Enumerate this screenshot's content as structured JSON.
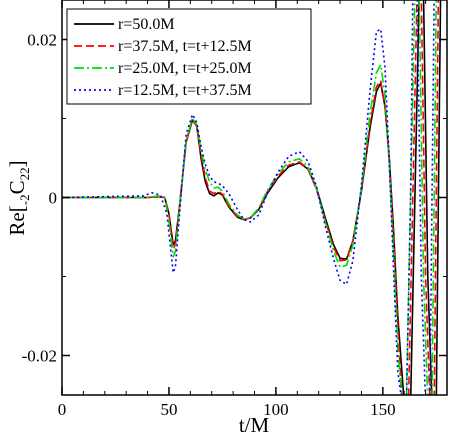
{
  "chart_data": {
    "type": "line",
    "title": "",
    "xlabel": "t/M",
    "ylabel": "Re[-2C22]",
    "ylabel_parts": {
      "base": "Re[",
      "pre_sub": "-2",
      "main": "C",
      "sub": "22",
      "close": "]"
    },
    "xlim": [
      0,
      180
    ],
    "ylim": [
      -0.025,
      0.025
    ],
    "x_ticks": [
      0,
      50,
      100,
      150
    ],
    "x_tick_labels": [
      "0",
      "50",
      "100",
      "150"
    ],
    "y_ticks": [
      -0.02,
      0,
      0.02
    ],
    "y_tick_labels": [
      "-0.02",
      "0",
      "0.02"
    ],
    "grid": false,
    "legend_position": "top-left",
    "series": [
      {
        "name": "r=50.0M",
        "color": "#000000",
        "dash": "solid",
        "points": [
          [
            0,
            0
          ],
          [
            40,
            0
          ],
          [
            45,
            0.0001
          ],
          [
            48,
            0
          ],
          [
            50,
            -0.002
          ],
          [
            52,
            -0.006
          ],
          [
            53,
            -0.0055
          ],
          [
            55,
            -0.001
          ],
          [
            58,
            0.007
          ],
          [
            61,
            0.0098
          ],
          [
            63,
            0.009
          ],
          [
            65,
            0.005
          ],
          [
            67,
            0.002
          ],
          [
            69,
            0.0005
          ],
          [
            71,
            0.0002
          ],
          [
            73,
            0.0006
          ],
          [
            75,
            0.0003
          ],
          [
            78,
            -0.0012
          ],
          [
            82,
            -0.0025
          ],
          [
            85,
            -0.0028
          ],
          [
            88,
            -0.0026
          ],
          [
            92,
            -0.0015
          ],
          [
            96,
            0.0005
          ],
          [
            101,
            0.0025
          ],
          [
            106,
            0.0039
          ],
          [
            111,
            0.0044
          ],
          [
            115,
            0.0036
          ],
          [
            119,
            0.0012
          ],
          [
            123,
            -0.0025
          ],
          [
            127,
            -0.006
          ],
          [
            130,
            -0.0077
          ],
          [
            133,
            -0.0078
          ],
          [
            136,
            -0.0055
          ],
          [
            140,
            0.0008
          ],
          [
            144,
            0.0088
          ],
          [
            147,
            0.0134
          ],
          [
            149,
            0.0145
          ],
          [
            151,
            0.0115
          ],
          [
            153,
            0.005
          ],
          [
            155,
            -0.004
          ],
          [
            157,
            -0.015
          ],
          [
            160,
            -0.026
          ],
          [
            163,
            -0.026
          ],
          [
            165,
            0
          ],
          [
            167,
            0.026
          ],
          [
            169,
            0.026
          ],
          [
            171,
            -0.01
          ],
          [
            173,
            -0.026
          ],
          [
            175,
            -0.026
          ],
          [
            176,
            0
          ],
          [
            177,
            0.026
          ],
          [
            179,
            0.026
          ]
        ]
      },
      {
        "name": "r=37.5M, t=t+12.5M",
        "color": "#ff0000",
        "dash": "8,4",
        "points": [
          [
            0,
            0
          ],
          [
            40,
            0
          ],
          [
            45,
            0.0001
          ],
          [
            48,
            0
          ],
          [
            50,
            -0.002
          ],
          [
            52,
            -0.0065
          ],
          [
            53,
            -0.006
          ],
          [
            55,
            -0.001
          ],
          [
            58,
            0.007
          ],
          [
            61,
            0.0099
          ],
          [
            63,
            0.009
          ],
          [
            65,
            0.0055
          ],
          [
            67,
            0.0025
          ],
          [
            69,
            0.0008
          ],
          [
            71,
            0.0005
          ],
          [
            73,
            0.0008
          ],
          [
            75,
            0.0004
          ],
          [
            78,
            -0.0011
          ],
          [
            82,
            -0.0024
          ],
          [
            85,
            -0.0028
          ],
          [
            88,
            -0.0026
          ],
          [
            92,
            -0.0014
          ],
          [
            96,
            0.0007
          ],
          [
            101,
            0.0027
          ],
          [
            106,
            0.0041
          ],
          [
            111,
            0.0045
          ],
          [
            115,
            0.0036
          ],
          [
            119,
            0.001
          ],
          [
            123,
            -0.0028
          ],
          [
            127,
            -0.0063
          ],
          [
            130,
            -0.008
          ],
          [
            133,
            -0.0079
          ],
          [
            136,
            -0.0055
          ],
          [
            140,
            0.001
          ],
          [
            144,
            0.0093
          ],
          [
            147,
            0.014
          ],
          [
            149,
            0.0148
          ],
          [
            151,
            0.0115
          ],
          [
            153,
            0.0045
          ],
          [
            155,
            -0.005
          ],
          [
            157,
            -0.016
          ],
          [
            159,
            -0.026
          ],
          [
            162,
            -0.026
          ],
          [
            164,
            0
          ],
          [
            166,
            0.026
          ],
          [
            168,
            0.026
          ],
          [
            170,
            -0.01
          ],
          [
            172,
            -0.026
          ],
          [
            174,
            -0.026
          ],
          [
            175,
            0
          ],
          [
            176,
            0.026
          ],
          [
            178,
            0.026
          ]
        ]
      },
      {
        "name": "r=25.0M, t=t+25.0M",
        "color": "#00dd00",
        "dash": "10,3,2,3",
        "points": [
          [
            0,
            0
          ],
          [
            40,
            0
          ],
          [
            45,
            0.0002
          ],
          [
            48,
            0
          ],
          [
            50,
            -0.003
          ],
          [
            52,
            -0.0075
          ],
          [
            53,
            -0.0068
          ],
          [
            55,
            -0.0012
          ],
          [
            58,
            0.0072
          ],
          [
            61,
            0.0101
          ],
          [
            63,
            0.0092
          ],
          [
            65,
            0.006
          ],
          [
            67,
            0.0035
          ],
          [
            69,
            0.002
          ],
          [
            71,
            0.0012
          ],
          [
            73,
            0.0013
          ],
          [
            75,
            0.0008
          ],
          [
            78,
            -0.0008
          ],
          [
            82,
            -0.0022
          ],
          [
            85,
            -0.0027
          ],
          [
            88,
            -0.0026
          ],
          [
            92,
            -0.0013
          ],
          [
            96,
            0.0009
          ],
          [
            101,
            0.003
          ],
          [
            106,
            0.0045
          ],
          [
            111,
            0.0049
          ],
          [
            115,
            0.0039
          ],
          [
            119,
            0.0011
          ],
          [
            123,
            -0.003
          ],
          [
            127,
            -0.0068
          ],
          [
            130,
            -0.0088
          ],
          [
            133,
            -0.0086
          ],
          [
            136,
            -0.006
          ],
          [
            140,
            0.0012
          ],
          [
            144,
            0.0105
          ],
          [
            147,
            0.0158
          ],
          [
            149,
            0.0168
          ],
          [
            151,
            0.013
          ],
          [
            153,
            0.004
          ],
          [
            155,
            -0.007
          ],
          [
            157,
            -0.019
          ],
          [
            159,
            -0.026
          ],
          [
            161,
            -0.026
          ],
          [
            163,
            0
          ],
          [
            165,
            0.026
          ],
          [
            167,
            0.026
          ],
          [
            169,
            -0.01
          ],
          [
            171,
            -0.026
          ],
          [
            173,
            -0.026
          ],
          [
            174,
            0
          ],
          [
            175,
            0.026
          ],
          [
            177,
            0.026
          ]
        ]
      },
      {
        "name": "r=12.5M, t=t+37.5M",
        "color": "#0000ff",
        "dash": "2,3",
        "points": [
          [
            0,
            0
          ],
          [
            38,
            0.0002
          ],
          [
            42,
            0.0006
          ],
          [
            46,
            0.0003
          ],
          [
            49,
            -0.002
          ],
          [
            52,
            -0.0095
          ],
          [
            53,
            -0.0088
          ],
          [
            55,
            -0.002
          ],
          [
            58,
            0.008
          ],
          [
            61,
            0.0105
          ],
          [
            63,
            0.0095
          ],
          [
            65,
            0.0065
          ],
          [
            67,
            0.0042
          ],
          [
            69,
            0.0027
          ],
          [
            71,
            0.002
          ],
          [
            73,
            0.0018
          ],
          [
            75,
            0.0015
          ],
          [
            78,
            0.0005
          ],
          [
            82,
            -0.0015
          ],
          [
            85,
            -0.0028
          ],
          [
            88,
            -0.0031
          ],
          [
            92,
            -0.0022
          ],
          [
            96,
            0.0005
          ],
          [
            101,
            0.0032
          ],
          [
            106,
            0.0052
          ],
          [
            111,
            0.0058
          ],
          [
            115,
            0.0046
          ],
          [
            119,
            0.0014
          ],
          [
            123,
            -0.0035
          ],
          [
            127,
            -0.0078
          ],
          [
            130,
            -0.0105
          ],
          [
            133,
            -0.011
          ],
          [
            136,
            -0.008
          ],
          [
            140,
            0.0015
          ],
          [
            144,
            0.0135
          ],
          [
            147,
            0.021
          ],
          [
            149,
            0.0213
          ],
          [
            151,
            0.0165
          ],
          [
            153,
            0.0045
          ],
          [
            155,
            -0.009
          ],
          [
            157,
            -0.022
          ],
          [
            159,
            -0.026
          ],
          [
            161,
            -0.026
          ],
          [
            163,
            0
          ],
          [
            164,
            0.026
          ],
          [
            166,
            0.026
          ],
          [
            168,
            -0.01
          ],
          [
            170,
            -0.026
          ],
          [
            172,
            -0.026
          ],
          [
            173,
            0
          ],
          [
            174,
            0.026
          ],
          [
            176,
            0.026
          ]
        ]
      }
    ]
  }
}
